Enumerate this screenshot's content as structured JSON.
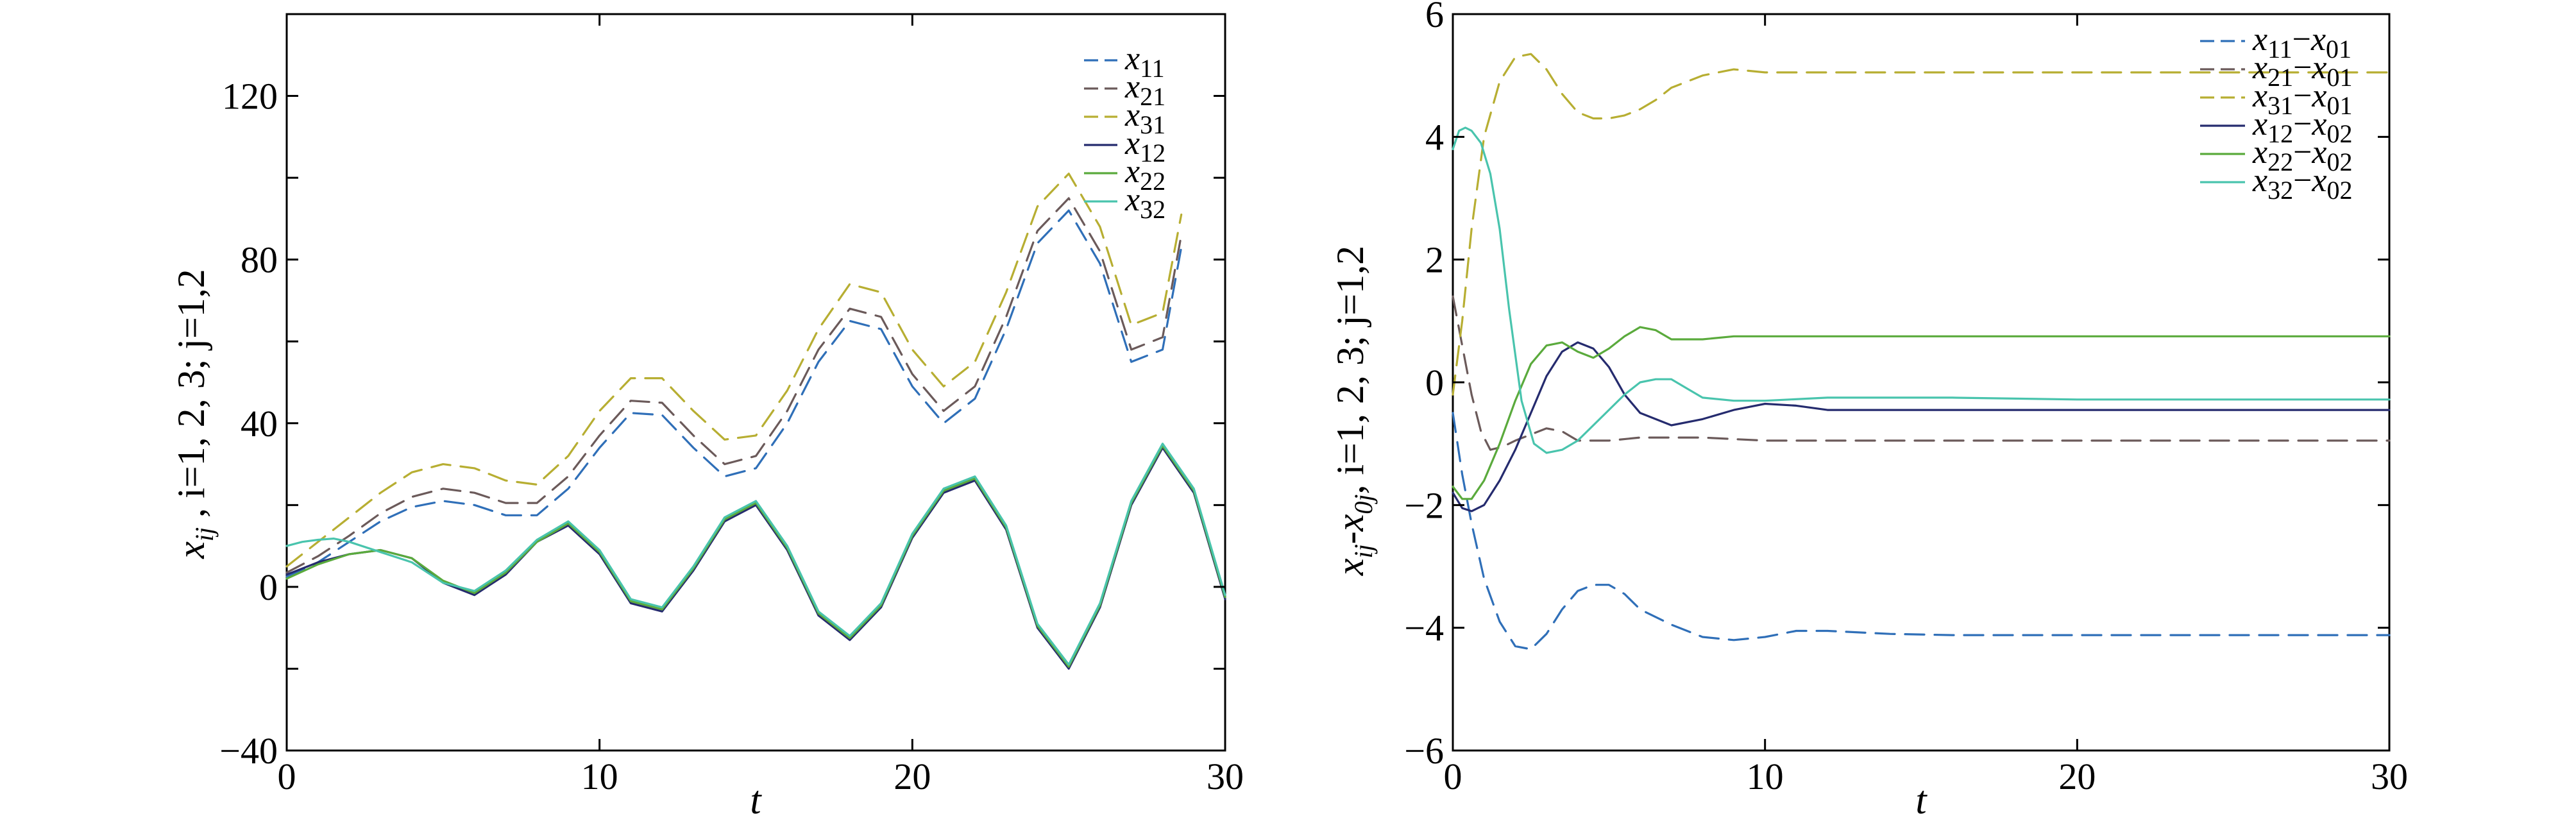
{
  "chart_data": [
    {
      "type": "line",
      "xlabel": "t",
      "ylabel_parts": [
        "x",
        "ij",
        " , i=1, 2, 3; j=1,2"
      ],
      "xlim": [
        0,
        30
      ],
      "ylim": [
        -40,
        140
      ],
      "xticks": [
        0,
        10,
        20,
        30
      ],
      "yticks": [
        -40,
        0,
        40,
        80,
        120
      ],
      "grid": false,
      "legend_position": "top-right",
      "legend": [
        {
          "main": "x",
          "sub": "11"
        },
        {
          "main": "x",
          "sub": "21"
        },
        {
          "main": "x",
          "sub": "31"
        },
        {
          "main": "x",
          "sub": "12"
        },
        {
          "main": "x",
          "sub": "22"
        },
        {
          "main": "x",
          "sub": "32"
        }
      ],
      "series": [
        {
          "color": "#2f6fb8",
          "dash": true,
          "x": [
            0,
            1,
            2,
            3,
            4,
            5,
            6,
            7,
            8,
            9,
            10,
            11,
            12,
            13,
            14,
            15,
            16,
            17,
            18,
            19,
            20,
            21,
            22,
            23,
            24,
            25,
            26,
            27,
            28,
            28.6
          ],
          "y": [
            2.5,
            6,
            11,
            16,
            19.5,
            21,
            20,
            17.5,
            17.5,
            24,
            34,
            42.5,
            42,
            34,
            27,
            29,
            40,
            55,
            65,
            63,
            49,
            40,
            46,
            63,
            84,
            92,
            79,
            55,
            58,
            83
          ]
        },
        {
          "color": "#6b5a5a",
          "dash": true,
          "x": [
            0,
            1,
            2,
            3,
            4,
            5,
            6,
            7,
            8,
            9,
            10,
            11,
            12,
            13,
            14,
            15,
            16,
            17,
            18,
            19,
            20,
            21,
            22,
            23,
            24,
            25,
            26,
            27,
            28,
            28.6
          ],
          "y": [
            3.5,
            7.5,
            12.5,
            18,
            22,
            24,
            23,
            20.5,
            20.5,
            27,
            37,
            45.5,
            45,
            37,
            30,
            32,
            43,
            58,
            68,
            66,
            52,
            43,
            49,
            66,
            87,
            95,
            82,
            58,
            61,
            86
          ]
        },
        {
          "color": "#b7ae32",
          "dash": true,
          "x": [
            0,
            1,
            2,
            3,
            4,
            5,
            6,
            7,
            8,
            9,
            10,
            11,
            12,
            13,
            14,
            15,
            16,
            17,
            18,
            19,
            20,
            21,
            22,
            23,
            24,
            25,
            26,
            27,
            28,
            28.6
          ],
          "y": [
            5,
            11,
            17,
            23,
            28,
            30,
            29,
            26,
            25,
            32,
            43,
            51,
            51,
            43,
            36,
            37,
            48,
            63,
            74,
            72,
            58,
            49,
            55,
            72,
            93,
            101,
            88,
            64,
            67,
            91
          ]
        },
        {
          "color": "#252b6e",
          "dash": false,
          "x": [
            0,
            1,
            2,
            3,
            4,
            5,
            6,
            7,
            8,
            9,
            10,
            11,
            12,
            13,
            14,
            15,
            16,
            17,
            18,
            19,
            20,
            21,
            22,
            23,
            24,
            25,
            26,
            27,
            28,
            29,
            30
          ],
          "y": [
            3,
            6,
            8,
            9,
            7,
            1,
            -2,
            3,
            11,
            15,
            8,
            -4,
            -6,
            4,
            16,
            20,
            9,
            -7,
            -13,
            -5,
            12,
            23,
            26,
            14,
            -10,
            -20,
            -5,
            20,
            34,
            23,
            -3
          ]
        },
        {
          "color": "#5aaa3c",
          "dash": false,
          "x": [
            0,
            1,
            2,
            3,
            4,
            5,
            6,
            7,
            8,
            9,
            10,
            11,
            12,
            13,
            14,
            15,
            16,
            17,
            18,
            19,
            20,
            21,
            22,
            23,
            24,
            25,
            26,
            27,
            28,
            29,
            30
          ],
          "y": [
            2,
            5.5,
            8,
            9,
            7,
            1.5,
            -1.5,
            3.5,
            11,
            15.5,
            8.5,
            -3.5,
            -5.5,
            4.5,
            16.5,
            20.5,
            9.5,
            -6.5,
            -12.5,
            -4.5,
            12.5,
            23.5,
            26.5,
            14.5,
            -9.5,
            -19.5,
            -4.5,
            20.5,
            34.5,
            23.5,
            -2.5
          ]
        },
        {
          "color": "#49c4ad",
          "dash": false,
          "x": [
            0,
            0.5,
            1,
            1.5,
            2,
            3,
            4,
            5,
            6,
            7,
            8,
            9,
            10,
            11,
            12,
            13,
            14,
            15,
            16,
            17,
            18,
            19,
            20,
            21,
            22,
            23,
            24,
            25,
            26,
            27,
            28,
            29,
            30
          ],
          "y": [
            10,
            11,
            11.5,
            11.8,
            11,
            8.5,
            6,
            1,
            -1,
            4,
            11.5,
            16,
            9,
            -3,
            -5,
            5,
            17,
            21,
            10,
            -6,
            -12,
            -4,
            13,
            24,
            27,
            15,
            -9,
            -19,
            -4,
            21,
            35,
            24,
            -2
          ]
        }
      ]
    },
    {
      "type": "line",
      "xlabel": "t",
      "ylabel_parts": [
        "x",
        "ij",
        "-x",
        "0j",
        ", i=1, 2, 3; j=1,2"
      ],
      "xlim": [
        0,
        30
      ],
      "ylim": [
        -6,
        6
      ],
      "xticks": [
        0,
        10,
        20,
        30
      ],
      "yticks": [
        -6,
        -4,
        -2,
        0,
        2,
        4,
        6
      ],
      "grid": false,
      "legend_position": "top-right",
      "legend": [
        {
          "a": "x",
          "asub": "11",
          "b": "x",
          "bsub": "01"
        },
        {
          "a": "x",
          "asub": "21",
          "b": "x",
          "bsub": "01"
        },
        {
          "a": "x",
          "asub": "31",
          "b": "x",
          "bsub": "01"
        },
        {
          "a": "x",
          "asub": "12",
          "b": "x",
          "bsub": "02"
        },
        {
          "a": "x",
          "asub": "22",
          "b": "x",
          "bsub": "02"
        },
        {
          "a": "x",
          "asub": "32",
          "b": "x",
          "bsub": "02"
        }
      ],
      "series": [
        {
          "color": "#2f6fb8",
          "dash": true,
          "x": [
            0,
            0.3,
            0.6,
            1,
            1.5,
            2,
            2.5,
            3,
            3.5,
            4,
            4.5,
            5,
            5.5,
            6,
            7,
            8,
            9,
            10,
            11,
            12,
            14,
            16,
            18,
            20,
            25,
            30
          ],
          "y": [
            -0.5,
            -1.5,
            -2.3,
            -3.2,
            -3.9,
            -4.3,
            -4.35,
            -4.1,
            -3.7,
            -3.4,
            -3.3,
            -3.3,
            -3.45,
            -3.7,
            -3.95,
            -4.15,
            -4.2,
            -4.15,
            -4.05,
            -4.05,
            -4.1,
            -4.12,
            -4.12,
            -4.12,
            -4.12,
            -4.12
          ]
        },
        {
          "color": "#6b5a5a",
          "dash": true,
          "x": [
            0,
            0.3,
            0.6,
            0.9,
            1.2,
            1.6,
            2,
            2.5,
            3,
            3.5,
            4,
            5,
            6,
            8,
            10,
            15,
            20,
            25,
            30
          ],
          "y": [
            1.4,
            0.6,
            -0.2,
            -0.8,
            -1.1,
            -1.05,
            -0.95,
            -0.85,
            -0.75,
            -0.8,
            -0.95,
            -0.95,
            -0.9,
            -0.9,
            -0.95,
            -0.95,
            -0.95,
            -0.95,
            -0.95
          ]
        },
        {
          "color": "#b7ae32",
          "dash": true,
          "x": [
            0,
            0.3,
            0.6,
            1,
            1.5,
            2,
            2.5,
            3,
            3.5,
            4,
            4.5,
            5,
            5.5,
            6,
            6.5,
            7,
            8,
            9,
            10,
            12,
            14,
            16,
            20,
            25,
            30
          ],
          "y": [
            -0.2,
            1,
            2.5,
            4,
            4.9,
            5.3,
            5.35,
            5.1,
            4.7,
            4.4,
            4.3,
            4.3,
            4.35,
            4.45,
            4.6,
            4.8,
            5,
            5.1,
            5.05,
            5.05,
            5.05,
            5.05,
            5.05,
            5.05,
            5.05
          ]
        },
        {
          "color": "#252b6e",
          "dash": false,
          "x": [
            0,
            0.3,
            0.6,
            1,
            1.5,
            2,
            2.5,
            3,
            3.5,
            4,
            4.5,
            5,
            5.5,
            6,
            7,
            8,
            9,
            10,
            11,
            12,
            14,
            16,
            20,
            25,
            30
          ],
          "y": [
            -1.8,
            -2.05,
            -2.1,
            -2,
            -1.6,
            -1.1,
            -0.5,
            0.1,
            0.5,
            0.65,
            0.55,
            0.25,
            -0.2,
            -0.5,
            -0.7,
            -0.6,
            -0.45,
            -0.35,
            -0.38,
            -0.45,
            -0.45,
            -0.45,
            -0.45,
            -0.45,
            -0.45
          ]
        },
        {
          "color": "#5aaa3c",
          "dash": false,
          "x": [
            0,
            0.3,
            0.6,
            1,
            1.5,
            2,
            2.5,
            3,
            3.5,
            4,
            4.5,
            5,
            5.5,
            6,
            6.5,
            7,
            8,
            9,
            10,
            12,
            14,
            16,
            20,
            25,
            30
          ],
          "y": [
            -1.7,
            -1.9,
            -1.9,
            -1.6,
            -1,
            -0.3,
            0.3,
            0.6,
            0.65,
            0.5,
            0.4,
            0.55,
            0.75,
            0.9,
            0.85,
            0.7,
            0.7,
            0.75,
            0.75,
            0.75,
            0.75,
            0.75,
            0.75,
            0.75,
            0.75
          ]
        },
        {
          "color": "#49c4ad",
          "dash": false,
          "x": [
            0,
            0.2,
            0.4,
            0.6,
            0.9,
            1.2,
            1.5,
            1.8,
            2.2,
            2.6,
            3,
            3.5,
            4,
            4.5,
            5,
            5.5,
            6,
            6.5,
            7,
            7.5,
            8,
            9,
            10,
            12,
            14,
            16,
            20,
            25,
            30
          ],
          "y": [
            3.8,
            4.1,
            4.15,
            4.1,
            3.9,
            3.4,
            2.5,
            1.2,
            -0.3,
            -1,
            -1.15,
            -1.1,
            -0.95,
            -0.7,
            -0.45,
            -0.2,
            0,
            0.05,
            0.05,
            -0.1,
            -0.25,
            -0.3,
            -0.3,
            -0.25,
            -0.25,
            -0.25,
            -0.28,
            -0.28,
            -0.28
          ]
        }
      ]
    }
  ]
}
